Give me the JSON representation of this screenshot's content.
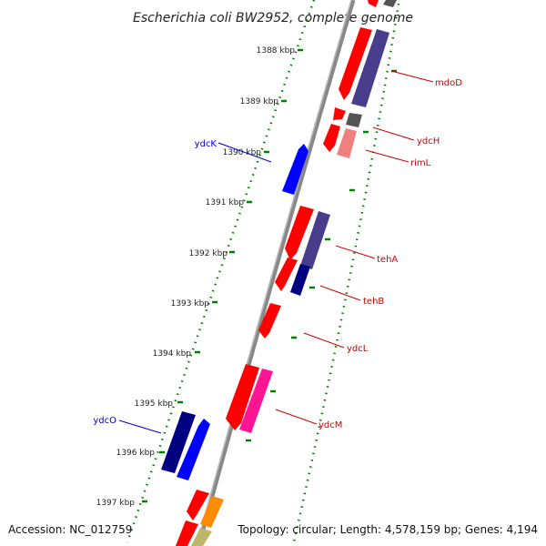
{
  "title": "Escherichia coli BW2952, complete genome",
  "footer": {
    "accession": "Accession: NC_012759",
    "summary": "Topology: circular; Length: 4,578,159 bp; Genes: 4,194"
  },
  "ticks": [
    "1388 kbp",
    "1389 kbp",
    "1390 kbp",
    "1391 kbp",
    "1392 kbp",
    "1393 kbp",
    "1394 kbp",
    "1395 kbp",
    "1396 kbp",
    "1397 kbp"
  ],
  "gene_labels": [
    {
      "name": "mdoD",
      "strand": "forward"
    },
    {
      "name": "ydcH",
      "strand": "forward"
    },
    {
      "name": "rimL",
      "strand": "forward"
    },
    {
      "name": "ydcK",
      "strand": "reverse"
    },
    {
      "name": "tehA",
      "strand": "forward"
    },
    {
      "name": "tehB",
      "strand": "forward"
    },
    {
      "name": "ydcL",
      "strand": "forward"
    },
    {
      "name": "ydcM",
      "strand": "forward"
    },
    {
      "name": "ydcO",
      "strand": "reverse"
    }
  ],
  "colors": {
    "forward_label": "#cc0000",
    "reverse_label": "#0000cc",
    "cds": "#ff0000",
    "blue": "#0000ff",
    "navy": "#000080",
    "slate": "#483d8b",
    "grey": "#555555",
    "pink": "#f08080",
    "magenta": "#ff1493",
    "orange": "#ff8c00",
    "olive": "#bdb76b",
    "tick_green": "#008000",
    "backbone": "#777777"
  }
}
